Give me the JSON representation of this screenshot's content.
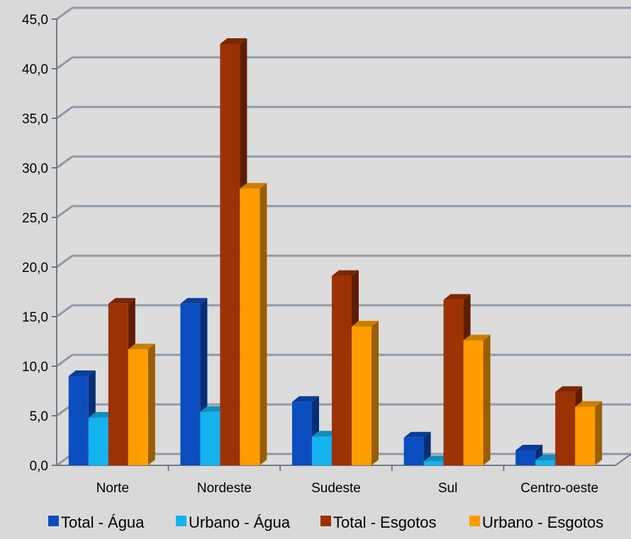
{
  "chart_data": {
    "type": "bar",
    "title": "",
    "xlabel": "",
    "ylabel": "",
    "ylim": [
      0,
      45
    ],
    "y_ticks": [
      "0,0",
      "5,0",
      "10,0",
      "15,0",
      "20,0",
      "25,0",
      "30,0",
      "35,0",
      "40,0",
      "45,0"
    ],
    "grid": true,
    "legend_position": "bottom",
    "categories": [
      "Norte",
      "Nordeste",
      "Sudeste",
      "Sul",
      "Centro-oeste"
    ],
    "series": [
      {
        "name": "Total - Água",
        "color": "#0a4dbf",
        "values": [
          9.0,
          16.3,
          6.4,
          2.8,
          1.5
        ]
      },
      {
        "name": "Urbano - Água",
        "color": "#13b3ee",
        "values": [
          4.8,
          5.4,
          2.9,
          0.4,
          0.5
        ]
      },
      {
        "name": "Total - Esgotos",
        "color": "#9c3104",
        "values": [
          16.3,
          42.5,
          19.1,
          16.7,
          7.4
        ]
      },
      {
        "name": "Urbano - Esgotos",
        "color": "#ff9c00",
        "values": [
          11.7,
          27.9,
          14.0,
          12.6,
          5.9
        ]
      }
    ]
  }
}
